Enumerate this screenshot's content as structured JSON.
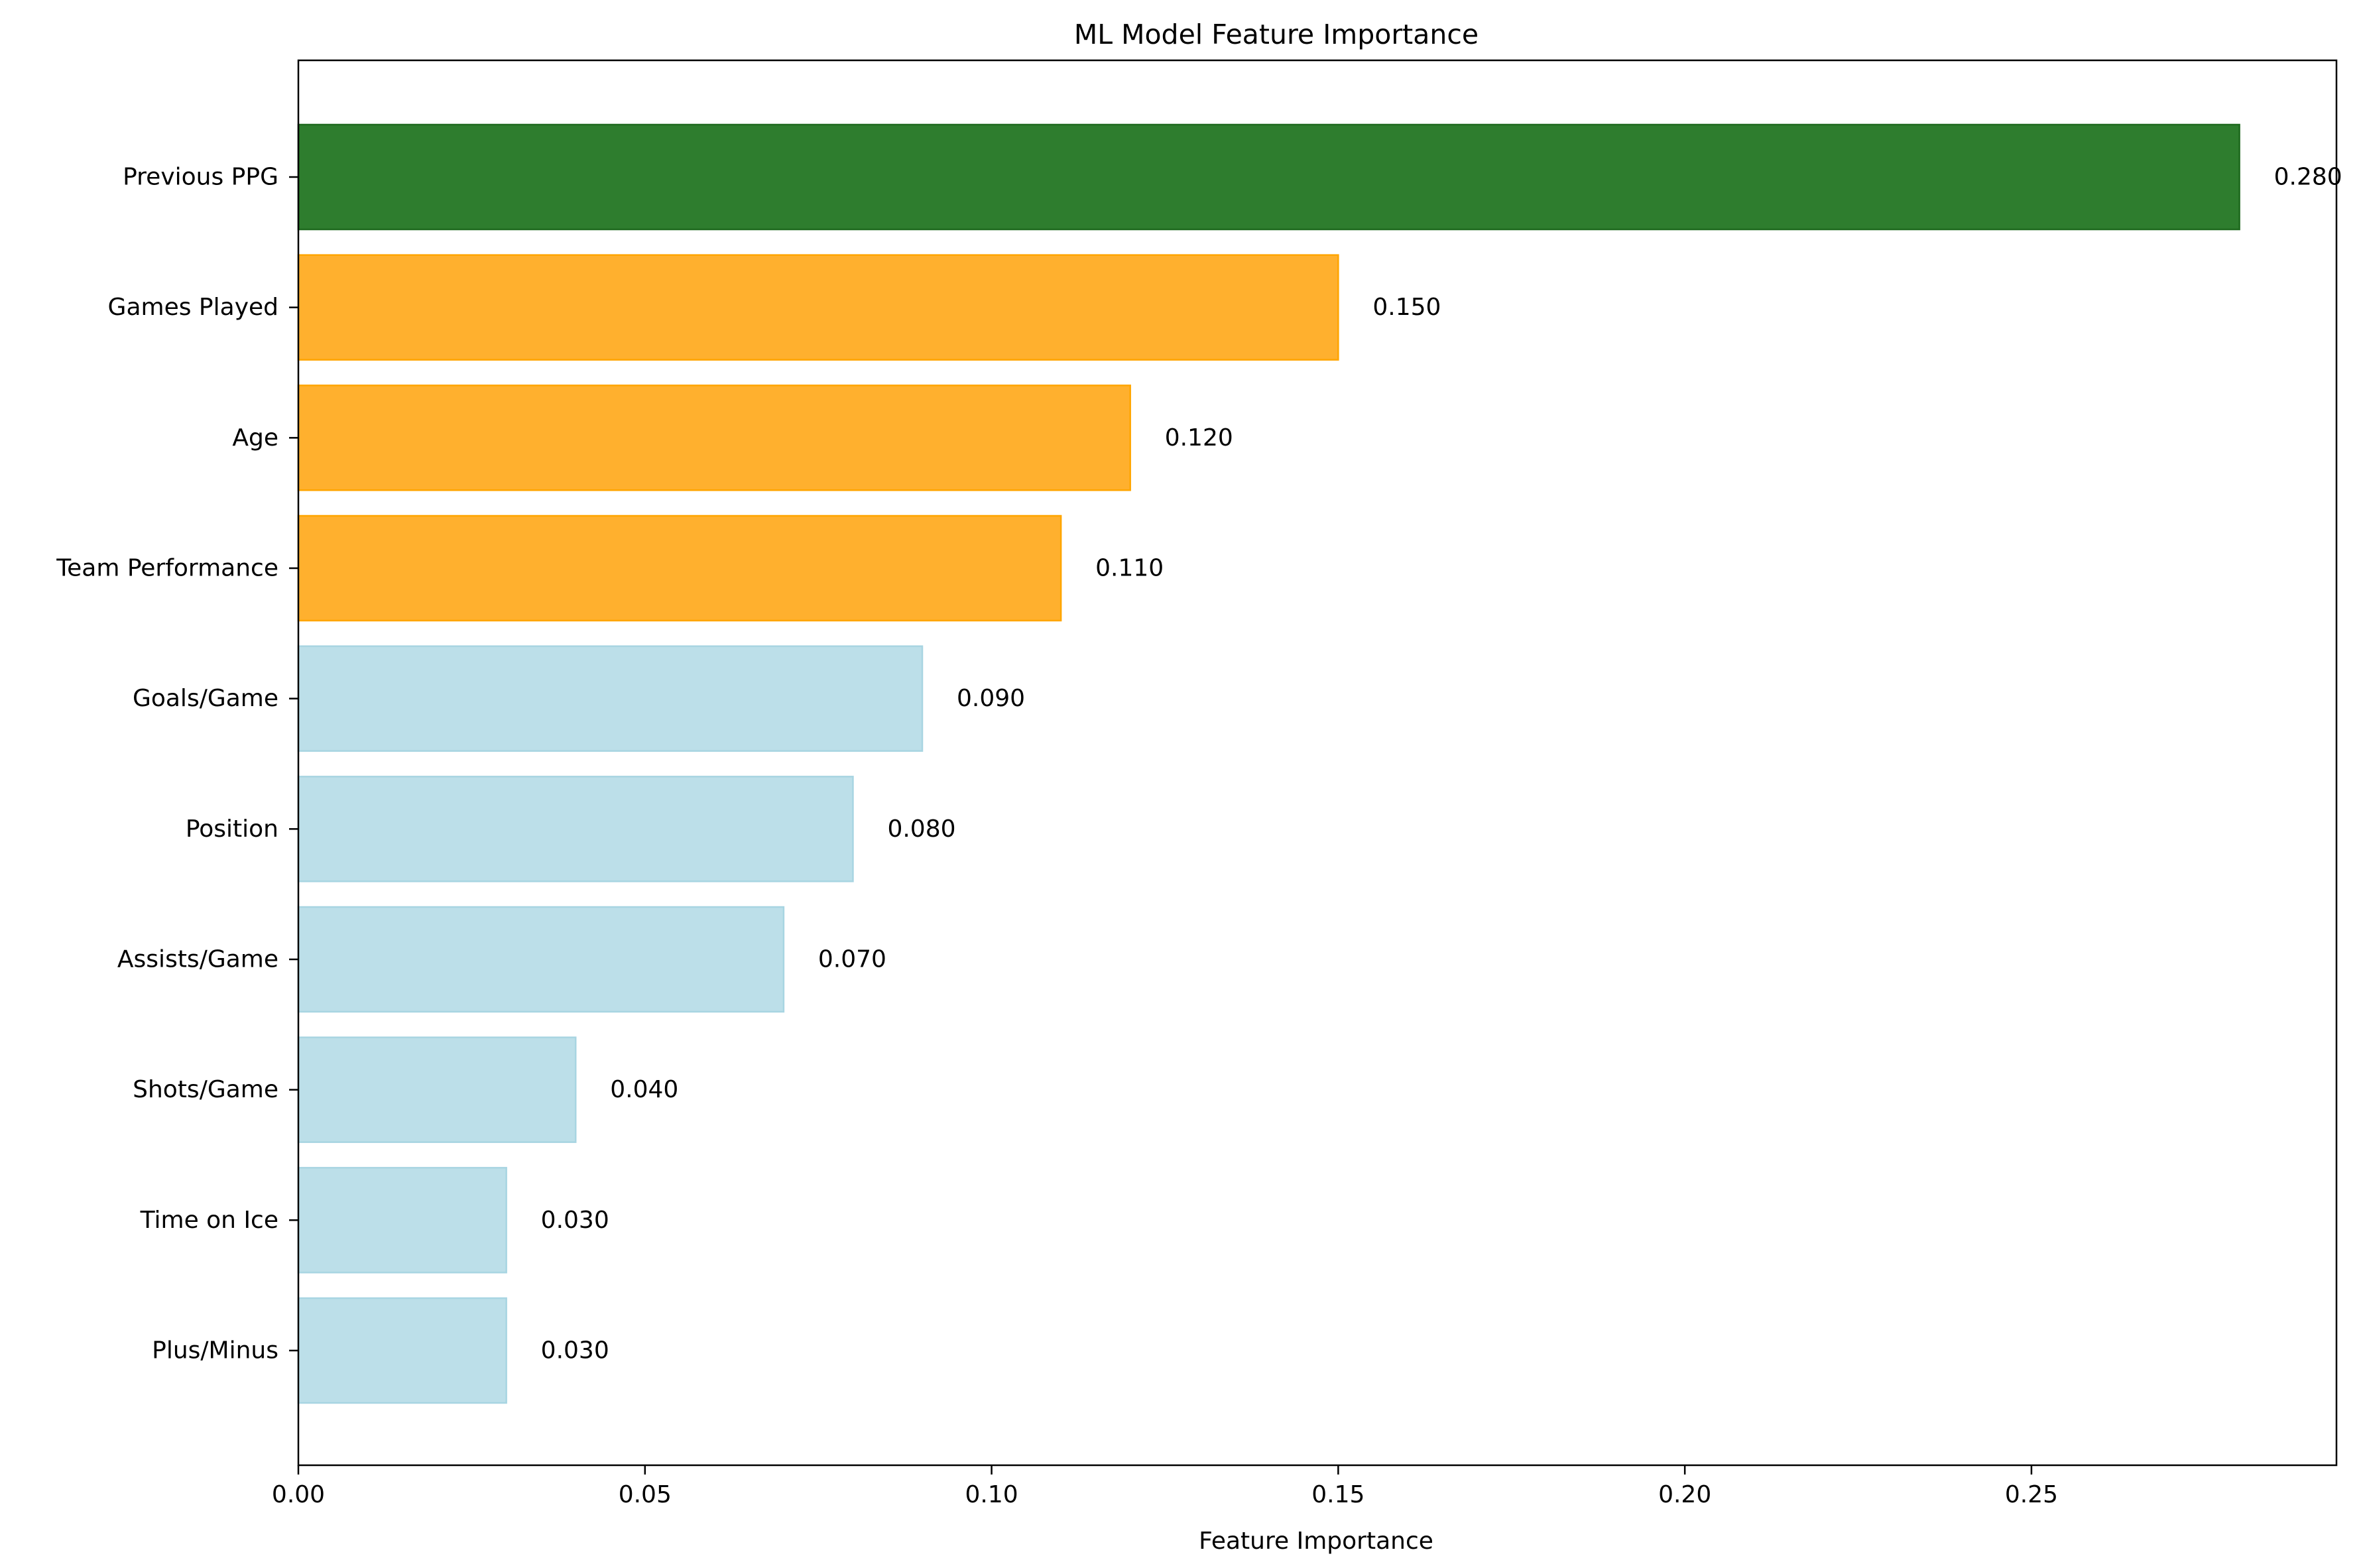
{
  "chart_data": {
    "type": "bar",
    "orientation": "horizontal",
    "title": "ML Model Feature Importance",
    "xlabel": "Feature Importance",
    "ylabel": "",
    "xlim": [
      0,
      0.294
    ],
    "xticks": [
      0.0,
      0.05,
      0.1,
      0.15,
      0.2,
      0.25
    ],
    "xtick_labels": [
      "0.00",
      "0.05",
      "0.10",
      "0.15",
      "0.20",
      "0.25"
    ],
    "grid": false,
    "legend": null,
    "categories": [
      "Previous PPG",
      "Games Played",
      "Age",
      "Team Performance",
      "Goals/Game",
      "Position",
      "Assists/Game",
      "Shots/Game",
      "Time on Ice",
      "Plus/Minus"
    ],
    "values": [
      0.28,
      0.15,
      0.12,
      0.11,
      0.09,
      0.08,
      0.07,
      0.04,
      0.03,
      0.03
    ],
    "value_labels": [
      "0.280",
      "0.150",
      "0.120",
      "0.110",
      "0.090",
      "0.080",
      "0.070",
      "0.040",
      "0.030",
      "0.030"
    ],
    "colors": {
      "top": "#2e7d2e",
      "high": "#ffb02e",
      "low": "#bcdfe9"
    },
    "edge_colors": {
      "top": "#1f6a1f",
      "high": "#ffa500",
      "low": "#a8d5e2"
    },
    "bar_colors": [
      "top",
      "high",
      "high",
      "high",
      "low",
      "low",
      "low",
      "low",
      "low",
      "low"
    ]
  }
}
